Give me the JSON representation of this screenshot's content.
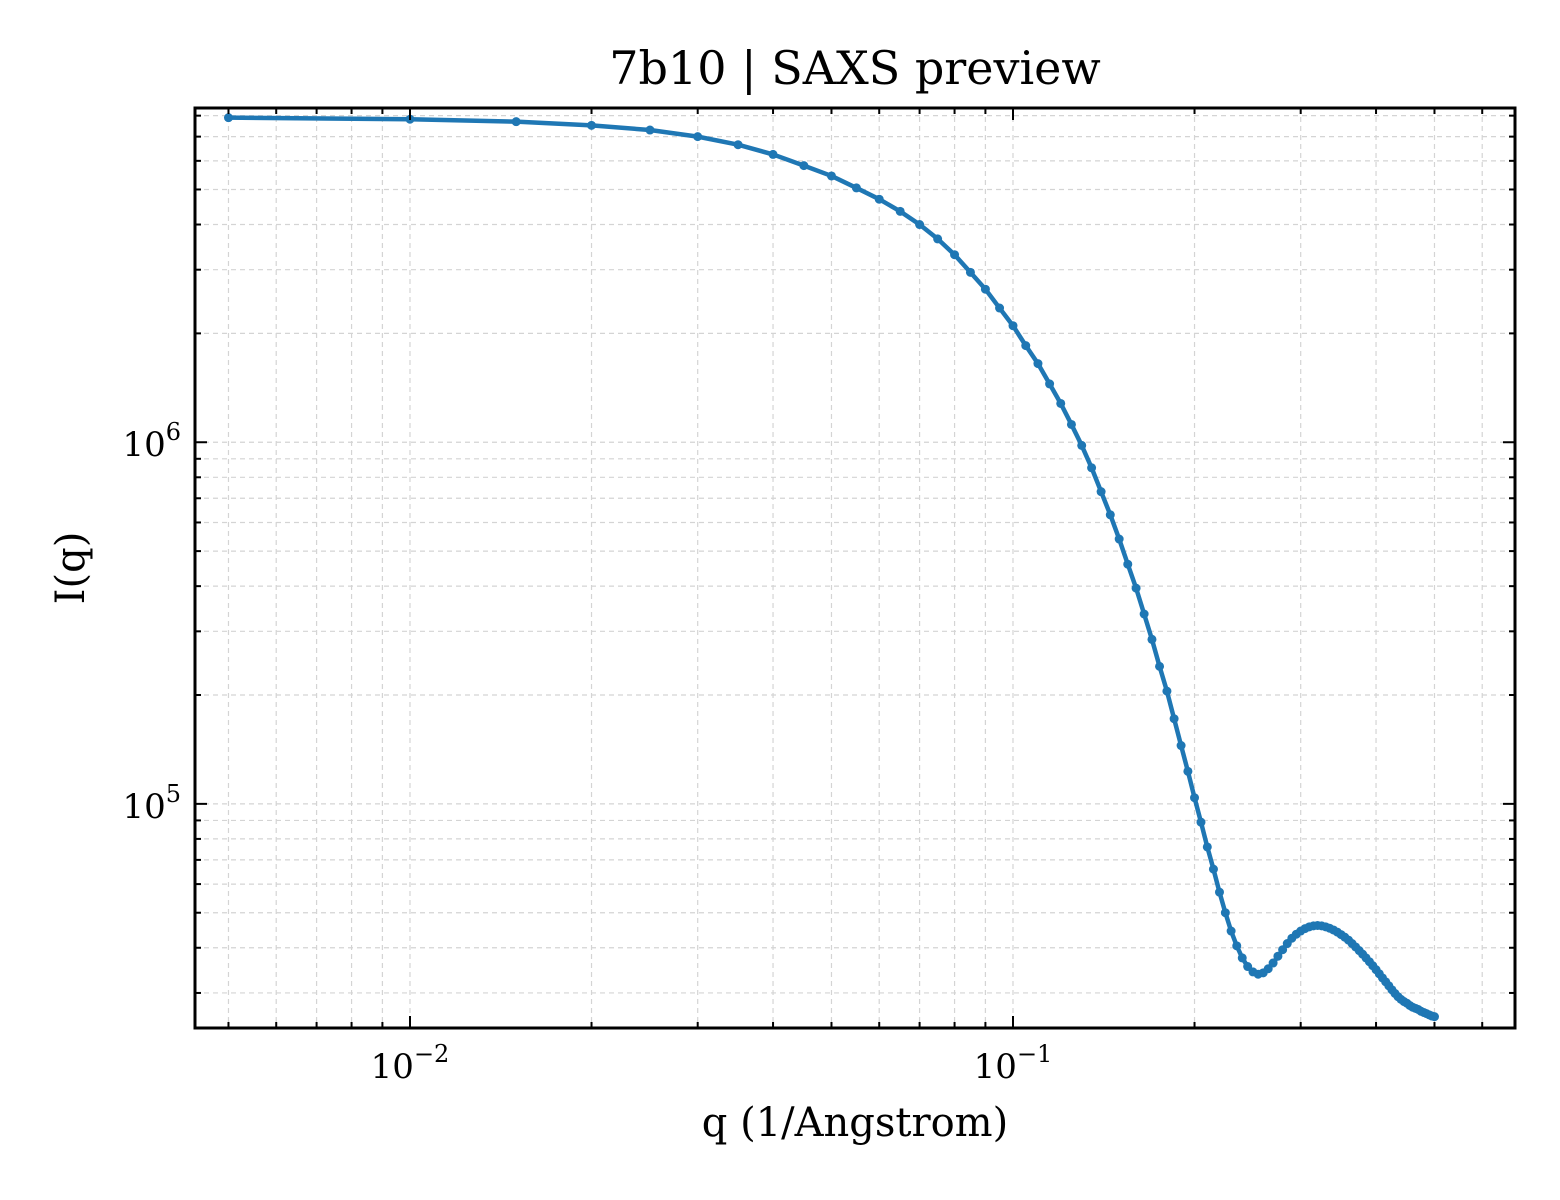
{
  "chart_data": {
    "type": "line",
    "title": "7b10 | SAXS preview",
    "xlabel": "q (1/Angstrom)",
    "ylabel": "I(q)",
    "x_scale": "log",
    "y_scale": "log",
    "xlim": [
      0.0044,
      0.68
    ],
    "ylim": [
      24000,
      8400000
    ],
    "grid": true,
    "x_major_ticks": [
      {
        "value": 0.01,
        "base": "10",
        "exp": "−2"
      },
      {
        "value": 0.1,
        "base": "10",
        "exp": "−1"
      }
    ],
    "y_major_ticks": [
      {
        "value": 100000,
        "base": "10",
        "exp": "5"
      },
      {
        "value": 1000000,
        "base": "10",
        "exp": "6"
      }
    ],
    "series": [
      {
        "color": "#1f77b4",
        "points": [
          [
            0.005,
            7900000
          ],
          [
            0.01,
            7820000
          ],
          [
            0.015,
            7700000
          ],
          [
            0.02,
            7520000
          ],
          [
            0.025,
            7300000
          ],
          [
            0.03,
            7000000
          ],
          [
            0.035,
            6650000
          ],
          [
            0.04,
            6250000
          ],
          [
            0.045,
            5820000
          ],
          [
            0.05,
            5450000
          ],
          [
            0.055,
            5050000
          ],
          [
            0.06,
            4700000
          ],
          [
            0.065,
            4350000
          ],
          [
            0.07,
            4000000
          ],
          [
            0.075,
            3650000
          ],
          [
            0.08,
            3300000
          ],
          [
            0.085,
            2950000
          ],
          [
            0.09,
            2650000
          ],
          [
            0.095,
            2350000
          ],
          [
            0.1,
            2100000
          ],
          [
            0.105,
            1850000
          ],
          [
            0.11,
            1650000
          ],
          [
            0.115,
            1450000
          ],
          [
            0.12,
            1280000
          ],
          [
            0.125,
            1120000
          ],
          [
            0.13,
            980000
          ],
          [
            0.135,
            850000
          ],
          [
            0.14,
            730000
          ],
          [
            0.145,
            630000
          ],
          [
            0.15,
            540000
          ],
          [
            0.155,
            460000
          ],
          [
            0.16,
            395000
          ],
          [
            0.165,
            335000
          ],
          [
            0.17,
            285000
          ],
          [
            0.175,
            240000
          ],
          [
            0.18,
            205000
          ],
          [
            0.185,
            172000
          ],
          [
            0.19,
            145000
          ],
          [
            0.195,
            123000
          ],
          [
            0.2,
            104000
          ],
          [
            0.205,
            89000
          ],
          [
            0.21,
            76000
          ],
          [
            0.215,
            66000
          ],
          [
            0.22,
            57000
          ],
          [
            0.225,
            50000
          ],
          [
            0.23,
            44500
          ],
          [
            0.235,
            40500
          ],
          [
            0.24,
            37500
          ],
          [
            0.245,
            35500
          ],
          [
            0.25,
            34300
          ],
          [
            0.255,
            33800
          ],
          [
            0.26,
            34100
          ],
          [
            0.265,
            35000
          ],
          [
            0.27,
            36300
          ],
          [
            0.275,
            37900
          ],
          [
            0.28,
            39500
          ],
          [
            0.285,
            41100
          ],
          [
            0.29,
            42500
          ],
          [
            0.295,
            43600
          ],
          [
            0.3,
            44500
          ],
          [
            0.305,
            45200
          ],
          [
            0.31,
            45700
          ],
          [
            0.315,
            46000
          ],
          [
            0.32,
            46100
          ],
          [
            0.325,
            46000
          ],
          [
            0.33,
            45700
          ],
          [
            0.335,
            45300
          ],
          [
            0.34,
            44800
          ],
          [
            0.345,
            44200
          ],
          [
            0.35,
            43500
          ],
          [
            0.355,
            42800
          ],
          [
            0.36,
            42000
          ],
          [
            0.365,
            41100
          ],
          [
            0.37,
            40200
          ],
          [
            0.375,
            39300
          ],
          [
            0.38,
            38400
          ],
          [
            0.385,
            37500
          ],
          [
            0.39,
            36600
          ],
          [
            0.395,
            35700
          ],
          [
            0.4,
            34800
          ],
          [
            0.405,
            33900
          ],
          [
            0.41,
            33000
          ],
          [
            0.415,
            32200
          ],
          [
            0.42,
            31400
          ],
          [
            0.425,
            30600
          ],
          [
            0.43,
            29900
          ],
          [
            0.435,
            29300
          ],
          [
            0.44,
            28800
          ],
          [
            0.445,
            28400
          ],
          [
            0.45,
            28100
          ],
          [
            0.455,
            27700
          ],
          [
            0.46,
            27400
          ],
          [
            0.465,
            27200
          ],
          [
            0.47,
            27000
          ],
          [
            0.475,
            26700
          ],
          [
            0.48,
            26500
          ],
          [
            0.485,
            26300
          ],
          [
            0.49,
            26100
          ],
          [
            0.495,
            25900
          ],
          [
            0.5,
            25800
          ]
        ]
      }
    ]
  }
}
